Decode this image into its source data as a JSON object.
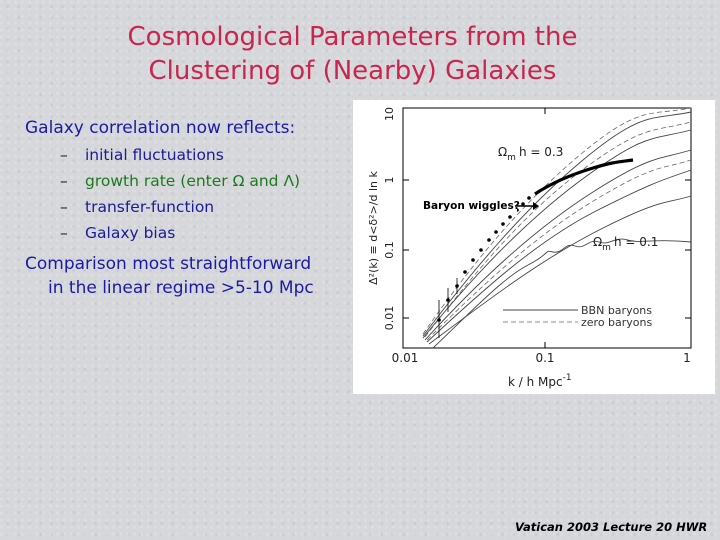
{
  "title": {
    "line1": "Cosmological Parameters from the",
    "line2": "Clustering of (Nearby) Galaxies"
  },
  "lead": "Galaxy correlation now reflects:",
  "bullets": [
    {
      "dash": "–",
      "text": "initial fluctuations"
    },
    {
      "dash": "–",
      "text": "growth rate (enter Ω and Λ)"
    },
    {
      "dash": "–",
      "text": "transfer-function"
    },
    {
      "dash": "–",
      "text": "Galaxy bias"
    }
  ],
  "conclusion": {
    "line1": "Comparison most straightforward",
    "line2": "in the linear regime >5-10 Mpc"
  },
  "figure": {
    "annotation": "Baryon wiggles?",
    "label_top": "Ω",
    "label_top_sub": "m",
    "label_top_rest": "h = 0.3",
    "label_bottom": "Ω",
    "label_bottom_sub": "m",
    "label_bottom_rest": "h = 0.1",
    "legend": [
      "BBN baryons",
      "zero baryons"
    ],
    "ylabel": "Δ²(k) ≡ d<δ²>/d ln k",
    "xlabel": "k / h Mpc",
    "xlabel_sup": "-1",
    "yticks": [
      "10",
      "1",
      "0.1",
      "0.01"
    ],
    "xticks": [
      "0.01",
      "0.1",
      "1"
    ]
  },
  "footer": "Vatican 2003 Lecture 20 HWR"
}
